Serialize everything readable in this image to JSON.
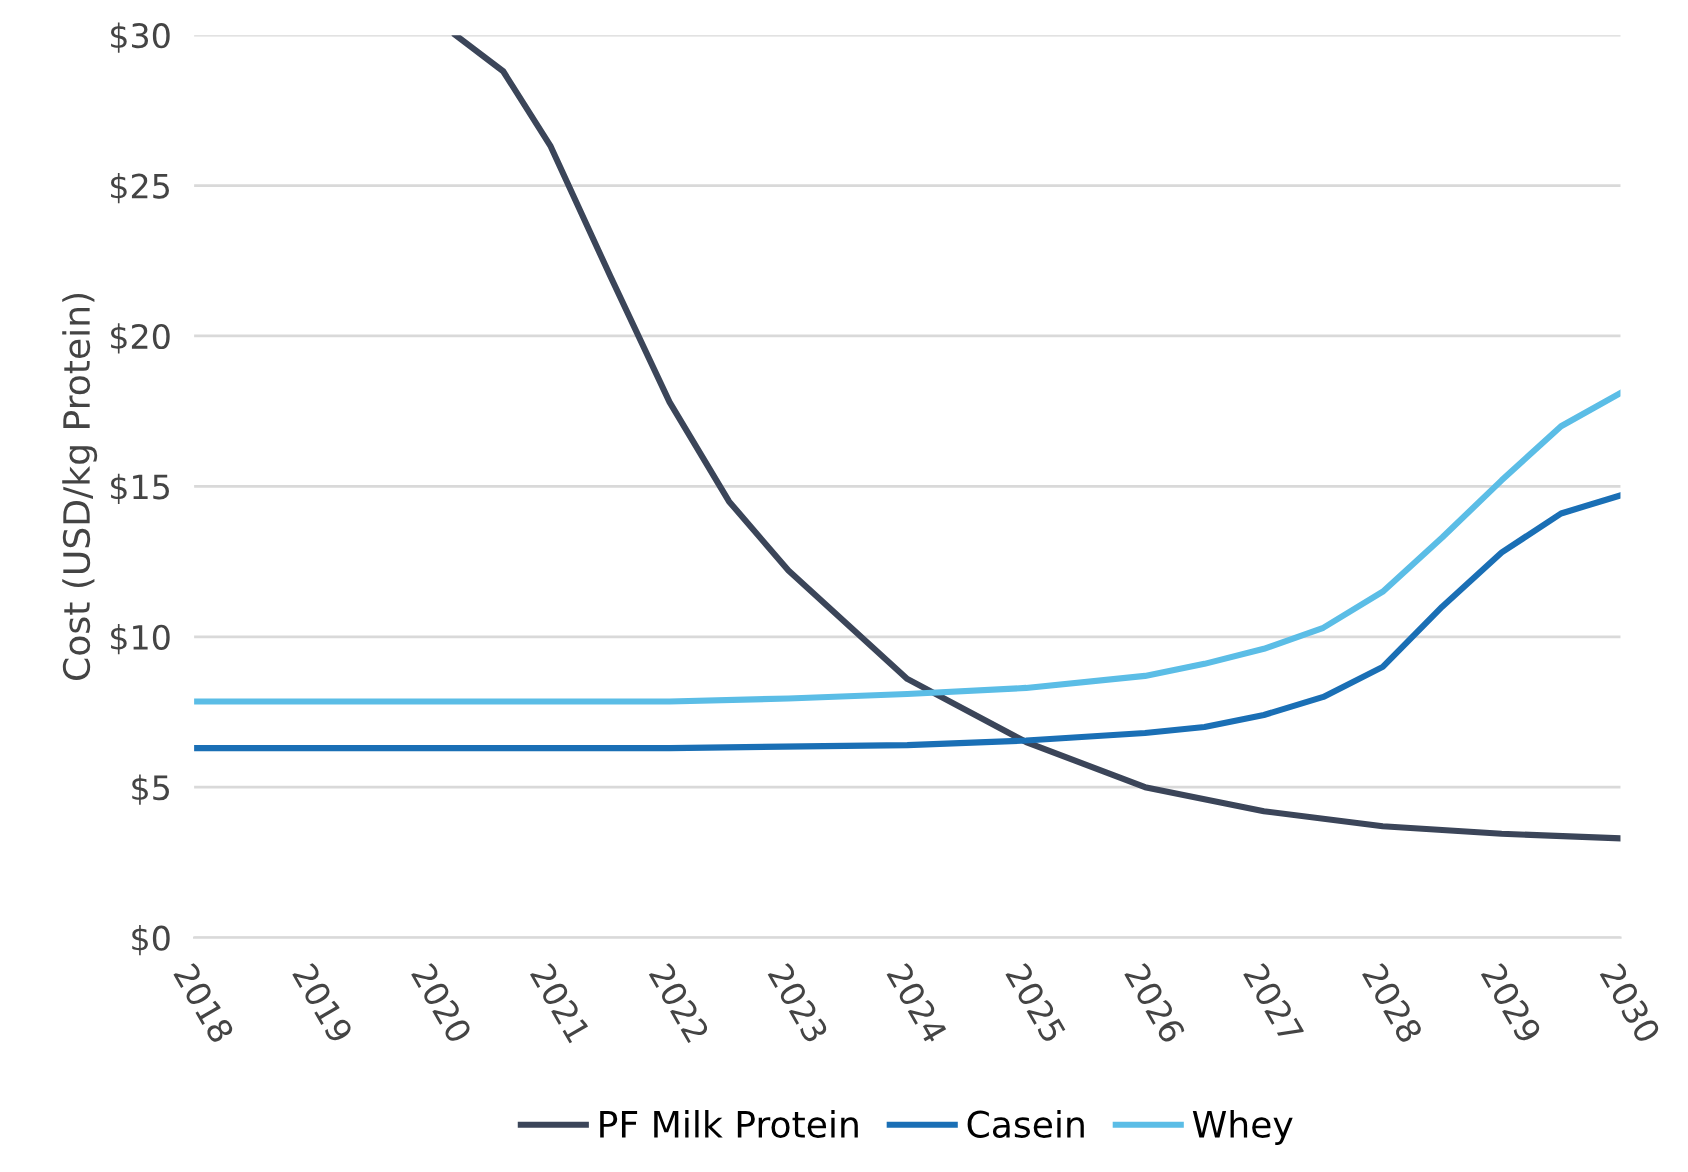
{
  "chart_data": {
    "type": "line",
    "ylabel": "Cost (USD/kg Protein)",
    "xlim": [
      2018,
      2030
    ],
    "xticks": [
      2018,
      2019,
      2020,
      2021,
      2022,
      2023,
      2024,
      2025,
      2026,
      2027,
      2028,
      2029,
      2030
    ],
    "ylim": [
      0,
      30
    ],
    "yticks": [
      {
        "value": 0,
        "label": "$0"
      },
      {
        "value": 5,
        "label": "$5"
      },
      {
        "value": 10,
        "label": "$10"
      },
      {
        "value": 15,
        "label": "$15"
      },
      {
        "value": 20,
        "label": "$20"
      },
      {
        "value": 25,
        "label": "$25"
      },
      {
        "value": 30,
        "label": "$30"
      }
    ],
    "grid": "y",
    "legend": "bottom",
    "line_style": "solid",
    "marker": "none",
    "series": [
      {
        "name": "PF Milk Protein",
        "color": "#3b4559",
        "x": [
          2020.2,
          2020.6,
          2021,
          2021.5,
          2022,
          2022.5,
          2023,
          2024,
          2025,
          2026,
          2027,
          2028,
          2029,
          2030
        ],
        "values": [
          30,
          28.8,
          26.3,
          22.0,
          17.8,
          14.5,
          12.2,
          8.6,
          6.5,
          5.0,
          4.2,
          3.7,
          3.45,
          3.3
        ]
      },
      {
        "name": "Casein",
        "color": "#1a6fb5",
        "x": [
          2018,
          2020,
          2022,
          2024,
          2025,
          2026,
          2026.5,
          2027,
          2027.5,
          2028,
          2028.5,
          2029,
          2029.5,
          2030
        ],
        "values": [
          6.3,
          6.3,
          6.3,
          6.4,
          6.55,
          6.8,
          7.0,
          7.4,
          8.0,
          9.0,
          11.0,
          12.8,
          14.1,
          14.7
        ]
      },
      {
        "name": "Whey",
        "color": "#5bbde6",
        "x": [
          2018,
          2020,
          2022,
          2023,
          2024,
          2025,
          2026,
          2026.5,
          2027,
          2027.5,
          2028,
          2028.5,
          2029,
          2029.5,
          2030
        ],
        "values": [
          7.85,
          7.85,
          7.85,
          7.95,
          8.1,
          8.3,
          8.7,
          9.1,
          9.6,
          10.3,
          11.5,
          13.3,
          15.2,
          17.0,
          18.1
        ]
      }
    ]
  }
}
